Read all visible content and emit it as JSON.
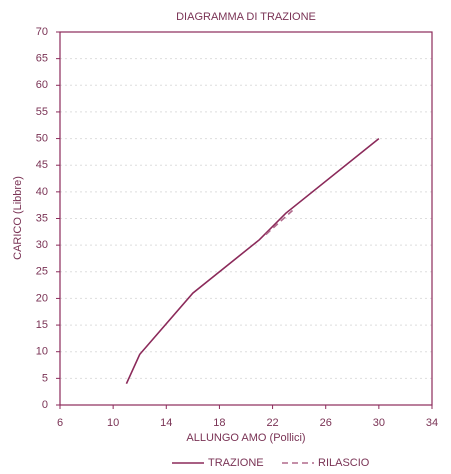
{
  "chart_data": {
    "type": "line",
    "title": "DIAGRAMMA DI TRAZIONE",
    "xlabel": "ALLUNGO AMO (Pollici)",
    "ylabel": "CARICO (Libbre)",
    "xlim": [
      6,
      34
    ],
    "xticks": [
      6,
      10,
      14,
      18,
      22,
      26,
      30,
      34
    ],
    "ylim": [
      0,
      70
    ],
    "yticks": [
      0,
      5,
      10,
      15,
      20,
      25,
      30,
      35,
      40,
      45,
      50,
      55,
      60,
      65,
      70
    ],
    "grid": true,
    "legend": "bottom",
    "series": [
      {
        "name": "TRAZIONE",
        "color": "#8b2a5a",
        "style": "solid",
        "x": [
          11,
          12,
          16,
          21,
          23,
          30
        ],
        "values": [
          4,
          9.5,
          21,
          31,
          36,
          50
        ]
      },
      {
        "name": "RILASCIO",
        "color": "#b06a8c",
        "style": "dashed",
        "x": [
          21.5,
          23.5
        ],
        "values": [
          32,
          36.5
        ]
      }
    ]
  }
}
